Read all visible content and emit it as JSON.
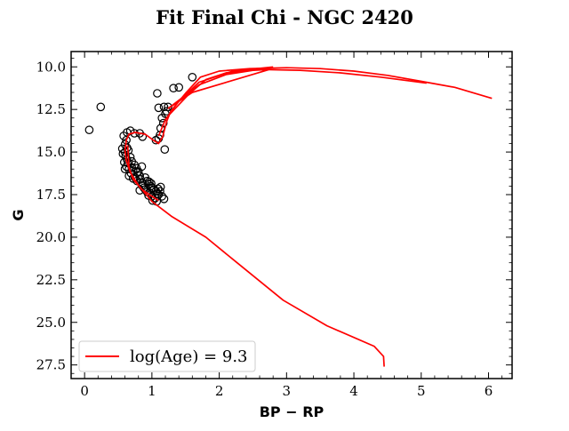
{
  "chart_data": {
    "type": "scatter",
    "title": "Fit Final Chi - NGC 2420",
    "xlabel": "BP − RP",
    "ylabel": "G",
    "xlim": [
      -0.2,
      6.35
    ],
    "ylim": [
      28.3,
      9.1
    ],
    "y_inverted": true,
    "xticks": [
      0,
      1,
      2,
      3,
      4,
      5,
      6
    ],
    "xtick_labels": [
      "0",
      "1",
      "2",
      "3",
      "4",
      "5",
      "6"
    ],
    "yticks": [
      10.0,
      12.5,
      15.0,
      17.5,
      20.0,
      22.5,
      25.0,
      27.5
    ],
    "ytick_labels": [
      "10.0",
      "12.5",
      "15.0",
      "17.5",
      "20.0",
      "22.5",
      "25.0",
      "27.5"
    ],
    "grid": false,
    "legend_position": "lower-left",
    "series": [
      {
        "kind": "points",
        "marker": "open-circle",
        "color": "#000000",
        "points": [
          [
            0.07,
            13.7
          ],
          [
            0.24,
            12.35
          ],
          [
            1.08,
            11.55
          ],
          [
            1.6,
            10.6
          ],
          [
            1.4,
            11.2
          ],
          [
            1.32,
            11.25
          ],
          [
            1.1,
            12.4
          ],
          [
            1.18,
            12.35
          ],
          [
            1.24,
            12.35
          ],
          [
            1.22,
            12.6
          ],
          [
            1.2,
            12.75
          ],
          [
            1.15,
            13.0
          ],
          [
            1.17,
            13.3
          ],
          [
            1.13,
            13.6
          ],
          [
            1.12,
            14.0
          ],
          [
            1.1,
            14.2
          ],
          [
            1.06,
            14.3
          ],
          [
            1.19,
            14.85
          ],
          [
            0.82,
            13.9
          ],
          [
            0.86,
            14.1
          ],
          [
            0.74,
            13.9
          ],
          [
            0.68,
            13.75
          ],
          [
            0.63,
            13.85
          ],
          [
            0.58,
            14.05
          ],
          [
            0.6,
            14.55
          ],
          [
            0.63,
            14.75
          ],
          [
            0.6,
            15.0
          ],
          [
            0.61,
            15.25
          ],
          [
            0.63,
            15.45
          ],
          [
            0.65,
            15.65
          ],
          [
            0.62,
            15.85
          ],
          [
            0.66,
            16.0
          ],
          [
            0.7,
            15.9
          ],
          [
            0.72,
            16.1
          ],
          [
            0.78,
            16.2
          ],
          [
            0.82,
            16.4
          ],
          [
            0.85,
            15.85
          ],
          [
            0.9,
            16.5
          ],
          [
            0.93,
            16.7
          ],
          [
            0.95,
            16.9
          ],
          [
            0.98,
            17.0
          ],
          [
            1.0,
            17.1
          ],
          [
            1.03,
            17.2
          ],
          [
            1.06,
            17.3
          ],
          [
            1.08,
            17.45
          ],
          [
            1.1,
            17.5
          ],
          [
            1.12,
            17.3
          ],
          [
            1.15,
            17.6
          ],
          [
            1.18,
            17.75
          ],
          [
            1.05,
            17.7
          ],
          [
            1.0,
            17.6
          ],
          [
            0.97,
            17.4
          ],
          [
            0.93,
            17.35
          ],
          [
            0.88,
            17.1
          ],
          [
            0.85,
            16.95
          ],
          [
            0.82,
            17.25
          ],
          [
            0.78,
            16.7
          ],
          [
            0.75,
            16.5
          ],
          [
            0.72,
            16.55
          ],
          [
            0.69,
            16.25
          ],
          [
            0.66,
            16.4
          ],
          [
            0.6,
            16.0
          ],
          [
            0.59,
            15.6
          ],
          [
            0.57,
            15.1
          ],
          [
            0.56,
            14.8
          ],
          [
            0.62,
            14.3
          ],
          [
            0.65,
            14.9
          ],
          [
            0.68,
            15.3
          ],
          [
            0.7,
            15.55
          ],
          [
            0.74,
            15.75
          ],
          [
            0.77,
            15.95
          ],
          [
            0.8,
            16.15
          ],
          [
            1.01,
            17.85
          ],
          [
            1.07,
            17.9
          ],
          [
            0.95,
            17.55
          ],
          [
            0.9,
            17.2
          ],
          [
            0.86,
            16.8
          ],
          [
            0.83,
            16.6
          ],
          [
            1.09,
            17.15
          ],
          [
            1.13,
            17.05
          ],
          [
            0.99,
            16.85
          ],
          [
            0.96,
            16.75
          ]
        ]
      },
      {
        "kind": "line",
        "name": "log(Age) = 9.3",
        "color": "#ff0000",
        "points": [
          [
            4.45,
            27.6
          ],
          [
            4.44,
            27.0
          ],
          [
            4.3,
            26.4
          ],
          [
            3.6,
            25.2
          ],
          [
            2.95,
            23.7
          ],
          [
            2.25,
            21.45
          ],
          [
            1.8,
            20.0
          ],
          [
            1.3,
            18.8
          ],
          [
            1.0,
            17.9
          ],
          [
            0.8,
            16.95
          ],
          [
            0.68,
            16.2
          ],
          [
            0.62,
            15.5
          ],
          [
            0.6,
            14.9
          ],
          [
            0.62,
            14.3
          ],
          [
            0.66,
            13.95
          ],
          [
            0.75,
            13.85
          ],
          [
            0.9,
            13.95
          ],
          [
            1.02,
            14.3
          ],
          [
            1.1,
            14.5
          ],
          [
            1.16,
            14.1
          ],
          [
            1.22,
            13.2
          ],
          [
            1.28,
            12.6
          ],
          [
            1.5,
            11.55
          ],
          [
            1.72,
            10.6
          ],
          [
            2.0,
            10.25
          ],
          [
            2.45,
            10.1
          ],
          [
            3.0,
            10.05
          ],
          [
            3.5,
            10.1
          ],
          [
            4.0,
            10.25
          ],
          [
            4.5,
            10.5
          ],
          [
            5.0,
            10.85
          ],
          [
            5.5,
            11.2
          ],
          [
            6.05,
            11.85
          ]
        ]
      },
      {
        "kind": "line",
        "color": "#ff0000",
        "points": [
          [
            1.26,
            12.8
          ],
          [
            1.55,
            11.6
          ],
          [
            1.8,
            10.75
          ],
          [
            2.1,
            10.35
          ],
          [
            2.6,
            10.15
          ],
          [
            3.2,
            10.2
          ],
          [
            3.8,
            10.35
          ],
          [
            4.4,
            10.6
          ],
          [
            5.08,
            10.95
          ]
        ]
      },
      {
        "kind": "line",
        "color": "#ff0000",
        "points": [
          [
            1.24,
            12.45
          ],
          [
            1.7,
            11.05
          ],
          [
            2.1,
            10.45
          ],
          [
            2.5,
            10.2
          ],
          [
            2.75,
            10.15
          ],
          [
            1.6,
            11.5
          ],
          [
            1.24,
            12.45
          ]
        ]
      },
      {
        "kind": "line",
        "color": "#ff0000",
        "points": [
          [
            1.1,
            14.05
          ],
          [
            1.2,
            13.1
          ],
          [
            1.4,
            12.0
          ],
          [
            1.7,
            10.9
          ],
          [
            2.2,
            10.25
          ],
          [
            2.8,
            10.0
          ]
        ]
      },
      {
        "kind": "line",
        "color": "#ff0000",
        "points": [
          [
            0.64,
            14.6
          ],
          [
            0.66,
            15.9
          ],
          [
            0.72,
            16.6
          ],
          [
            0.85,
            17.2
          ],
          [
            1.0,
            17.6
          ],
          [
            1.1,
            17.85
          ]
        ]
      }
    ]
  }
}
